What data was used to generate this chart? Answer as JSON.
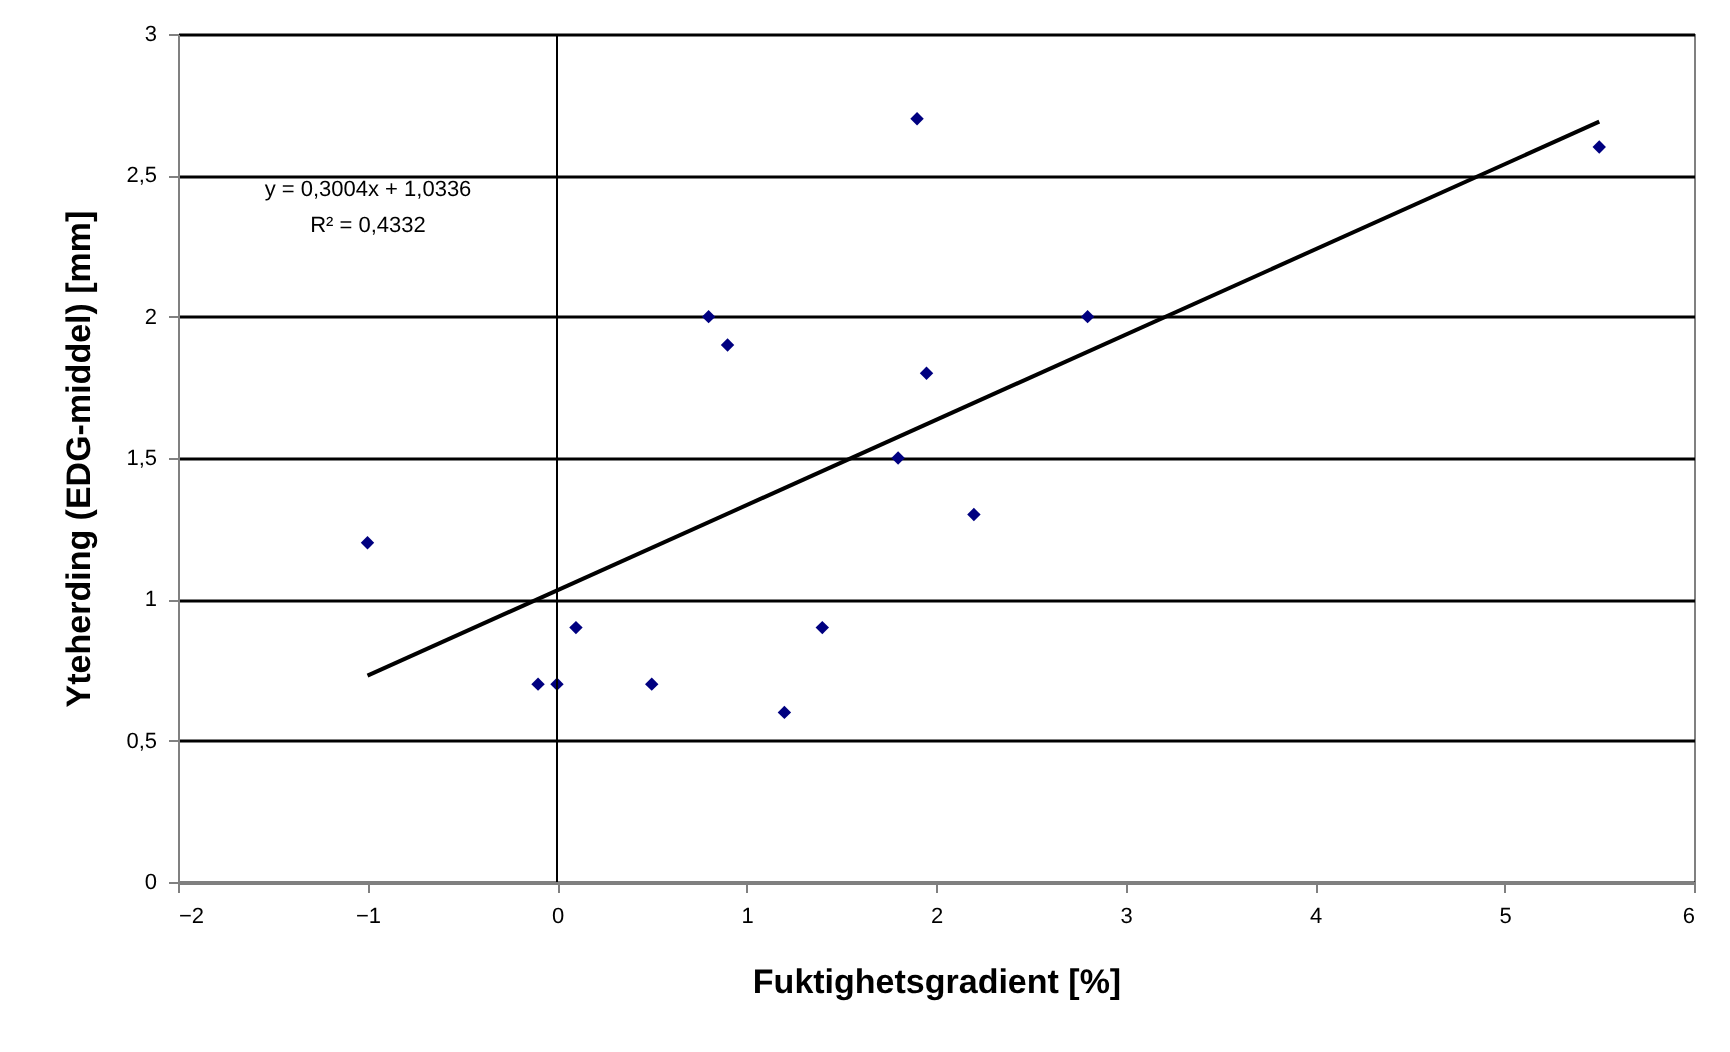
{
  "chart_data": {
    "type": "scatter",
    "xlabel": "Fuktighetsgradient [%]",
    "ylabel": "Yteherding (EDG-middel) [mm]",
    "annotations": [
      "y = 0,3004x + 1,0336",
      "R² = 0,4332"
    ],
    "series": [
      {
        "color": "#000080",
        "x": [
          -1,
          -0.1,
          0,
          0.1,
          0.5,
          0.8,
          0.9,
          1.2,
          1.4,
          1.8,
          1.9,
          1.95,
          2.2,
          2.8,
          5.5
        ],
        "values": [
          1.2,
          0.7,
          0.7,
          0.9,
          0.7,
          2.0,
          1.9,
          0.6,
          0.9,
          1.5,
          2.7,
          1.8,
          1.3,
          2.0,
          2.6
        ]
      },
      {
        "type": "line",
        "marker": "none",
        "color": "#000000",
        "x": [
          -1,
          5.5
        ],
        "values": [
          0.73,
          2.69
        ]
      }
    ],
    "xlim": [
      -2,
      6
    ],
    "xticks": [
      -2,
      -1,
      0,
      1,
      2,
      3,
      4,
      5,
      6
    ],
    "ylim": [
      0,
      3
    ],
    "yticks": [
      0,
      {
        "value": 0.5,
        "label": "0,5"
      },
      1,
      {
        "value": 1.5,
        "label": "1,5"
      },
      2,
      {
        "value": 2.5,
        "label": "2,5"
      },
      3
    ],
    "ref_lines": [
      {
        "axis": "x",
        "value": 0,
        "color": "#000000"
      }
    ],
    "grid": "y",
    "marker": "diamond"
  }
}
